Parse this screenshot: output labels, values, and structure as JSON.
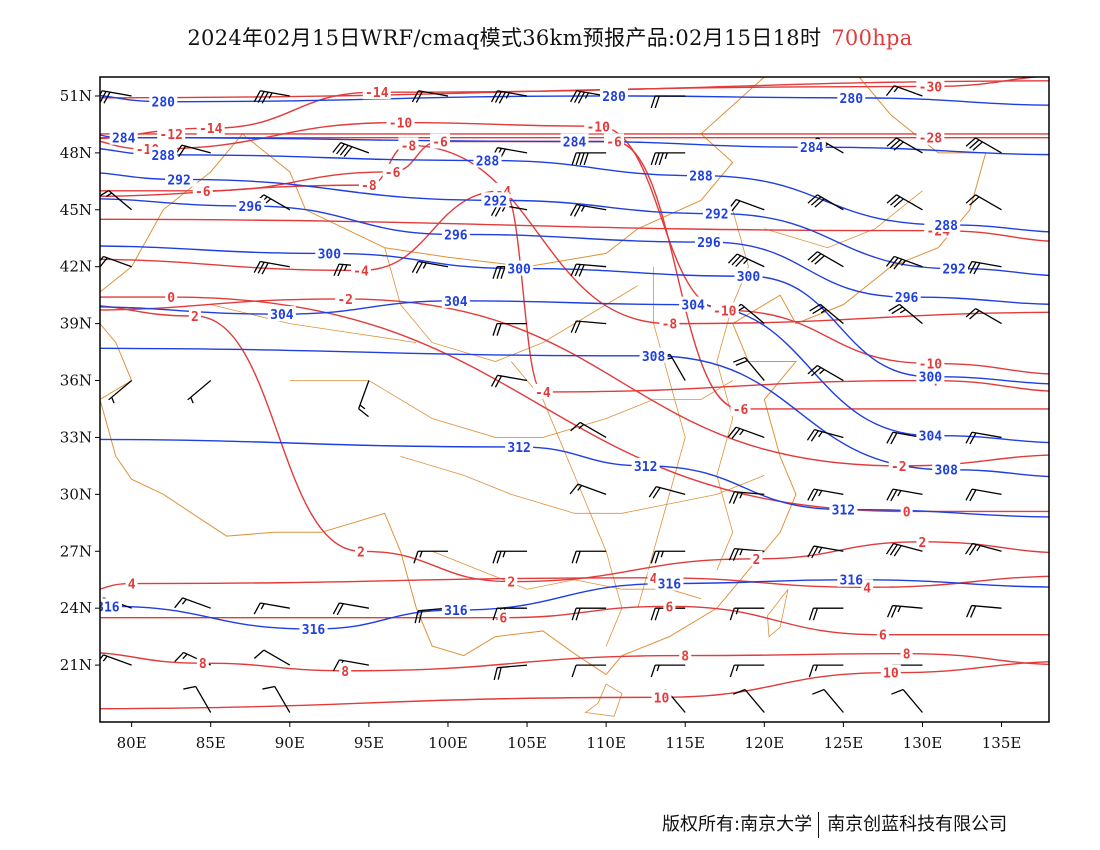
{
  "title": {
    "main": "2024年02月15日WRF/cmaq模式36km预报产品:02月15日18时",
    "level": "700hpa"
  },
  "axes": {
    "lat_labels": [
      "51N",
      "48N",
      "45N",
      "42N",
      "39N",
      "36N",
      "33N",
      "30N",
      "27N",
      "24N",
      "21N"
    ],
    "lat_values": [
      51,
      48,
      45,
      42,
      39,
      36,
      33,
      30,
      27,
      24,
      21
    ],
    "lon_labels": [
      "80E",
      "85E",
      "90E",
      "95E",
      "100E",
      "105E",
      "110E",
      "115E",
      "120E",
      "125E",
      "130E",
      "135E"
    ],
    "lon_values": [
      80,
      85,
      90,
      95,
      100,
      105,
      110,
      115,
      120,
      125,
      130,
      135
    ],
    "lon_range": [
      78,
      138
    ],
    "lat_range": [
      18,
      52
    ]
  },
  "colors": {
    "height": "#1f3fe0",
    "temperature": "#e23b3b",
    "boundary": "#e0913a",
    "wind": "#000000",
    "frame": "#000000"
  },
  "height_contours": [
    {
      "value": "280",
      "label_points": [
        [
          82,
          50.7
        ],
        [
          110.5,
          51
        ],
        [
          125.5,
          50.9
        ]
      ]
    },
    {
      "value": "284",
      "label_points": [
        [
          79.5,
          48.8
        ],
        [
          108,
          48.6
        ],
        [
          123,
          48.3
        ]
      ]
    },
    {
      "value": "288",
      "label_points": [
        [
          82,
          47.9
        ],
        [
          102.5,
          47.6
        ],
        [
          116,
          46.8
        ],
        [
          131.5,
          44.2
        ]
      ]
    },
    {
      "value": "292",
      "label_points": [
        [
          83,
          46.6
        ],
        [
          103,
          45.5
        ],
        [
          117,
          44.8
        ],
        [
          132,
          41.9
        ]
      ]
    },
    {
      "value": "296",
      "label_points": [
        [
          87.5,
          45.2
        ],
        [
          100.5,
          43.7
        ],
        [
          116.5,
          43.3
        ],
        [
          129,
          40.4
        ]
      ]
    },
    {
      "value": "300",
      "label_points": [
        [
          92.5,
          42.7
        ],
        [
          104.5,
          41.9
        ],
        [
          119,
          41.5
        ],
        [
          130.5,
          36.2
        ]
      ]
    },
    {
      "value": "304",
      "label_points": [
        [
          89.5,
          39.5
        ],
        [
          100.5,
          40.2
        ],
        [
          115.5,
          40
        ],
        [
          130.5,
          33.1
        ]
      ]
    },
    {
      "value": "308",
      "label_points": [
        [
          113,
          37.3
        ],
        [
          131.5,
          31.3
        ]
      ]
    },
    {
      "value": "312",
      "label_points": [
        [
          104.5,
          32.5
        ],
        [
          112.5,
          31.5
        ],
        [
          125,
          29.2
        ]
      ]
    },
    {
      "value": "316",
      "label_points": [
        [
          78.5,
          24.1
        ],
        [
          91.5,
          22.9
        ],
        [
          100.5,
          23.9
        ],
        [
          114,
          25.3
        ],
        [
          125.5,
          25.5
        ]
      ]
    }
  ],
  "temperature_contours": [
    {
      "value": "-30",
      "label_points": [
        [
          130.5,
          51.5
        ]
      ]
    },
    {
      "value": "-28",
      "label_points": [
        [
          130.5,
          48.8
        ]
      ]
    },
    {
      "value": "-24",
      "label_points": [
        [
          131,
          43.9
        ]
      ]
    },
    {
      "value": "-14",
      "label_points": [
        [
          85,
          49.3
        ],
        [
          95.5,
          51.2
        ]
      ]
    },
    {
      "value": "-12",
      "label_points": [
        [
          82.5,
          49
        ]
      ]
    },
    {
      "value": "-10",
      "label_points": [
        [
          81,
          48.2
        ],
        [
          97,
          49.6
        ],
        [
          109.5,
          49.4
        ],
        [
          117.5,
          39.7
        ],
        [
          130.5,
          36.9
        ]
      ]
    },
    {
      "value": "-8",
      "label_points": [
        [
          95,
          46.3
        ],
        [
          97.5,
          48.4
        ],
        [
          114,
          39
        ]
      ]
    },
    {
      "value": "-6",
      "label_points": [
        [
          84.5,
          46
        ],
        [
          96.5,
          47
        ],
        [
          99.5,
          48.6
        ],
        [
          110.5,
          48.6
        ],
        [
          118.5,
          34.5
        ]
      ]
    },
    {
      "value": "-4",
      "label_points": [
        [
          94.5,
          41.8
        ],
        [
          103.5,
          46
        ],
        [
          106,
          35.4
        ],
        [
          130.5,
          36
        ]
      ]
    },
    {
      "value": "-2",
      "label_points": [
        [
          93.5,
          40.3
        ],
        [
          128.5,
          31.5
        ]
      ]
    },
    {
      "value": "0",
      "label_points": [
        [
          82.5,
          40.4
        ],
        [
          129,
          29.1
        ]
      ]
    },
    {
      "value": "2",
      "label_points": [
        [
          84,
          39.4
        ],
        [
          94.5,
          27
        ],
        [
          104,
          25.4
        ],
        [
          119.5,
          26.6
        ],
        [
          130,
          27.5
        ]
      ]
    },
    {
      "value": "4",
      "label_points": [
        [
          80,
          25.3
        ],
        [
          113,
          25.6
        ],
        [
          126.5,
          25.1
        ]
      ]
    },
    {
      "value": "6",
      "label_points": [
        [
          103.5,
          23.5
        ],
        [
          114,
          24.1
        ],
        [
          127.5,
          22.6
        ]
      ]
    },
    {
      "value": "8",
      "label_points": [
        [
          84.5,
          21.1
        ],
        [
          93.5,
          20.7
        ],
        [
          115,
          21.5
        ],
        [
          129,
          21.6
        ]
      ]
    },
    {
      "value": "10",
      "label_points": [
        [
          113.5,
          19.3
        ],
        [
          128,
          20.6
        ]
      ]
    }
  ],
  "wind_barbs": [
    {
      "lon": 80,
      "lat": 51,
      "dir": 280,
      "speed": 30
    },
    {
      "lon": 90,
      "lat": 51,
      "dir": 280,
      "speed": 35
    },
    {
      "lon": 100,
      "lat": 51,
      "dir": 280,
      "speed": 20
    },
    {
      "lon": 105,
      "lat": 51,
      "dir": 280,
      "speed": 35
    },
    {
      "lon": 110,
      "lat": 51,
      "dir": 280,
      "speed": 35
    },
    {
      "lon": 115,
      "lat": 51,
      "dir": 270,
      "speed": 20
    },
    {
      "lon": 130,
      "lat": 51,
      "dir": 290,
      "speed": 15
    },
    {
      "lon": 85,
      "lat": 48,
      "dir": 285,
      "speed": 20
    },
    {
      "lon": 95,
      "lat": 48,
      "dir": 290,
      "speed": 40
    },
    {
      "lon": 105,
      "lat": 48,
      "dir": 280,
      "speed": 30
    },
    {
      "lon": 110,
      "lat": 48,
      "dir": 270,
      "speed": 40
    },
    {
      "lon": 115,
      "lat": 48,
      "dir": 270,
      "speed": 35
    },
    {
      "lon": 125,
      "lat": 48,
      "dir": 300,
      "speed": 35
    },
    {
      "lon": 130,
      "lat": 48,
      "dir": 300,
      "speed": 30
    },
    {
      "lon": 135,
      "lat": 48,
      "dir": 300,
      "speed": 30
    },
    {
      "lon": 90,
      "lat": 45,
      "dir": 300,
      "speed": 25
    },
    {
      "lon": 80,
      "lat": 45,
      "dir": 310,
      "speed": 15
    },
    {
      "lon": 105,
      "lat": 45,
      "dir": 280,
      "speed": 25
    },
    {
      "lon": 110,
      "lat": 45,
      "dir": 280,
      "speed": 25
    },
    {
      "lon": 120,
      "lat": 45,
      "dir": 290,
      "speed": 20
    },
    {
      "lon": 125,
      "lat": 45,
      "dir": 300,
      "speed": 30
    },
    {
      "lon": 130,
      "lat": 45,
      "dir": 300,
      "speed": 30
    },
    {
      "lon": 135,
      "lat": 45,
      "dir": 300,
      "speed": 20
    },
    {
      "lon": 80,
      "lat": 42,
      "dir": 290,
      "speed": 20
    },
    {
      "lon": 90,
      "lat": 42,
      "dir": 280,
      "speed": 30
    },
    {
      "lon": 95,
      "lat": 42,
      "dir": 275,
      "speed": 25
    },
    {
      "lon": 100,
      "lat": 42,
      "dir": 280,
      "speed": 25
    },
    {
      "lon": 105,
      "lat": 42,
      "dir": 270,
      "speed": 30
    },
    {
      "lon": 110,
      "lat": 42,
      "dir": 275,
      "speed": 30
    },
    {
      "lon": 120,
      "lat": 42,
      "dir": 295,
      "speed": 35
    },
    {
      "lon": 125,
      "lat": 42,
      "dir": 300,
      "speed": 30
    },
    {
      "lon": 130,
      "lat": 42,
      "dir": 290,
      "speed": 35
    },
    {
      "lon": 135,
      "lat": 42,
      "dir": 280,
      "speed": 30
    },
    {
      "lon": 85,
      "lat": 36,
      "dir": 230,
      "speed": 5
    },
    {
      "lon": 80,
      "lat": 36,
      "dir": 230,
      "speed": 5
    },
    {
      "lon": 95,
      "lat": 36,
      "dir": 200,
      "speed": 15
    },
    {
      "lon": 105,
      "lat": 39,
      "dir": 270,
      "speed": 20
    },
    {
      "lon": 110,
      "lat": 39,
      "dir": 275,
      "speed": 20
    },
    {
      "lon": 120,
      "lat": 39,
      "dir": 310,
      "speed": 20
    },
    {
      "lon": 125,
      "lat": 39,
      "dir": 310,
      "speed": 25
    },
    {
      "lon": 130,
      "lat": 39,
      "dir": 310,
      "speed": 25
    },
    {
      "lon": 135,
      "lat": 39,
      "dir": 300,
      "speed": 20
    },
    {
      "lon": 105,
      "lat": 36,
      "dir": 280,
      "speed": 20
    },
    {
      "lon": 115,
      "lat": 36,
      "dir": 330,
      "speed": 15
    },
    {
      "lon": 120,
      "lat": 36,
      "dir": 320,
      "speed": 20
    },
    {
      "lon": 125,
      "lat": 36,
      "dir": 300,
      "speed": 25
    },
    {
      "lon": 130,
      "lat": 33,
      "dir": 280,
      "speed": 20
    },
    {
      "lon": 135,
      "lat": 33,
      "dir": 280,
      "speed": 20
    },
    {
      "lon": 110,
      "lat": 33,
      "dir": 300,
      "speed": 15
    },
    {
      "lon": 120,
      "lat": 33,
      "dir": 290,
      "speed": 25
    },
    {
      "lon": 125,
      "lat": 33,
      "dir": 285,
      "speed": 25
    },
    {
      "lon": 110,
      "lat": 30,
      "dir": 290,
      "speed": 15
    },
    {
      "lon": 115,
      "lat": 30,
      "dir": 285,
      "speed": 20
    },
    {
      "lon": 120,
      "lat": 30,
      "dir": 275,
      "speed": 25
    },
    {
      "lon": 125,
      "lat": 30,
      "dir": 280,
      "speed": 25
    },
    {
      "lon": 130,
      "lat": 30,
      "dir": 280,
      "speed": 25
    },
    {
      "lon": 135,
      "lat": 30,
      "dir": 280,
      "speed": 20
    },
    {
      "lon": 100,
      "lat": 27,
      "dir": 270,
      "speed": 15
    },
    {
      "lon": 105,
      "lat": 27,
      "dir": 270,
      "speed": 25
    },
    {
      "lon": 110,
      "lat": 27,
      "dir": 270,
      "speed": 20
    },
    {
      "lon": 115,
      "lat": 27,
      "dir": 270,
      "speed": 25
    },
    {
      "lon": 120,
      "lat": 27,
      "dir": 275,
      "speed": 25
    },
    {
      "lon": 125,
      "lat": 27,
      "dir": 280,
      "speed": 25
    },
    {
      "lon": 130,
      "lat": 27,
      "dir": 285,
      "speed": 30
    },
    {
      "lon": 135,
      "lat": 27,
      "dir": 285,
      "speed": 25
    },
    {
      "lon": 80,
      "lat": 24,
      "dir": 290,
      "speed": 20
    },
    {
      "lon": 85,
      "lat": 24,
      "dir": 290,
      "speed": 15
    },
    {
      "lon": 90,
      "lat": 24,
      "dir": 280,
      "speed": 15
    },
    {
      "lon": 95,
      "lat": 24,
      "dir": 280,
      "speed": 20
    },
    {
      "lon": 100,
      "lat": 24,
      "dir": 265,
      "speed": 20
    },
    {
      "lon": 105,
      "lat": 24,
      "dir": 270,
      "speed": 25
    },
    {
      "lon": 110,
      "lat": 24,
      "dir": 270,
      "speed": 20
    },
    {
      "lon": 115,
      "lat": 24,
      "dir": 270,
      "speed": 20
    },
    {
      "lon": 120,
      "lat": 24,
      "dir": 270,
      "speed": 15
    },
    {
      "lon": 125,
      "lat": 24,
      "dir": 270,
      "speed": 20
    },
    {
      "lon": 130,
      "lat": 24,
      "dir": 275,
      "speed": 25
    },
    {
      "lon": 135,
      "lat": 24,
      "dir": 275,
      "speed": 20
    },
    {
      "lon": 80,
      "lat": 21,
      "dir": 290,
      "speed": 15
    },
    {
      "lon": 85,
      "lat": 21,
      "dir": 295,
      "speed": 15
    },
    {
      "lon": 90,
      "lat": 21,
      "dir": 300,
      "speed": 10
    },
    {
      "lon": 95,
      "lat": 21,
      "dir": 280,
      "speed": 15
    },
    {
      "lon": 105,
      "lat": 21,
      "dir": 265,
      "speed": 20
    },
    {
      "lon": 110,
      "lat": 21,
      "dir": 270,
      "speed": 10
    },
    {
      "lon": 115,
      "lat": 21,
      "dir": 270,
      "speed": 15
    },
    {
      "lon": 120,
      "lat": 21,
      "dir": 270,
      "speed": 15
    },
    {
      "lon": 125,
      "lat": 21,
      "dir": 270,
      "speed": 15
    },
    {
      "lon": 130,
      "lat": 21,
      "dir": 270,
      "speed": 10
    },
    {
      "lon": 85,
      "lat": 18.5,
      "dir": 330,
      "speed": 10
    },
    {
      "lon": 90,
      "lat": 18.5,
      "dir": 330,
      "speed": 10
    },
    {
      "lon": 115,
      "lat": 18.5,
      "dir": 320,
      "speed": 10
    },
    {
      "lon": 120,
      "lat": 18.5,
      "dir": 320,
      "speed": 10
    },
    {
      "lon": 125,
      "lat": 18.5,
      "dir": 320,
      "speed": 10
    },
    {
      "lon": 130,
      "lat": 18.5,
      "dir": 320,
      "speed": 10
    }
  ],
  "footer": {
    "copyright": "版权所有:南京大学",
    "company": "南京创蓝科技有限公司"
  }
}
